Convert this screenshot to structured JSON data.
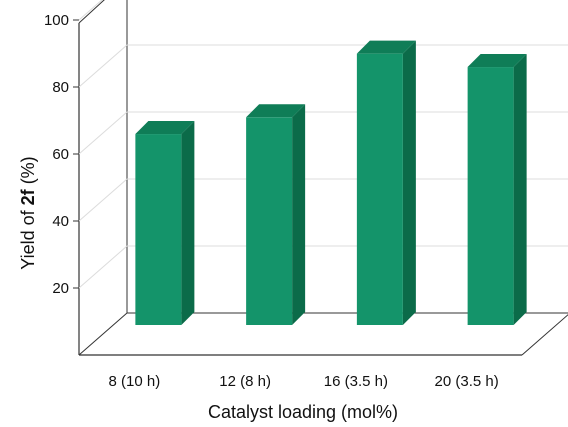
{
  "chart_data": {
    "type": "bar",
    "style": "3d",
    "categories": [
      "8 (10 h)",
      "12 (8 h)",
      "16 (3.5 h)",
      "20 (3.5 h)"
    ],
    "values": [
      57,
      62,
      81,
      77
    ],
    "xlabel": "Catalyst loading (mol%)",
    "ylabel": {
      "prefix": "Yield of ",
      "bold": "2f",
      "suffix": " (%)"
    },
    "yticks": [
      "20",
      "40",
      "60",
      "80",
      "100"
    ],
    "ylim": [
      0,
      100
    ],
    "grid": true,
    "legend": "none",
    "colors": {
      "bar_front": "#14946a",
      "bar_top": "#0f7d57",
      "bar_side": "#0b6b49",
      "grid": "#dcdcdc",
      "axis": "#333333"
    }
  }
}
